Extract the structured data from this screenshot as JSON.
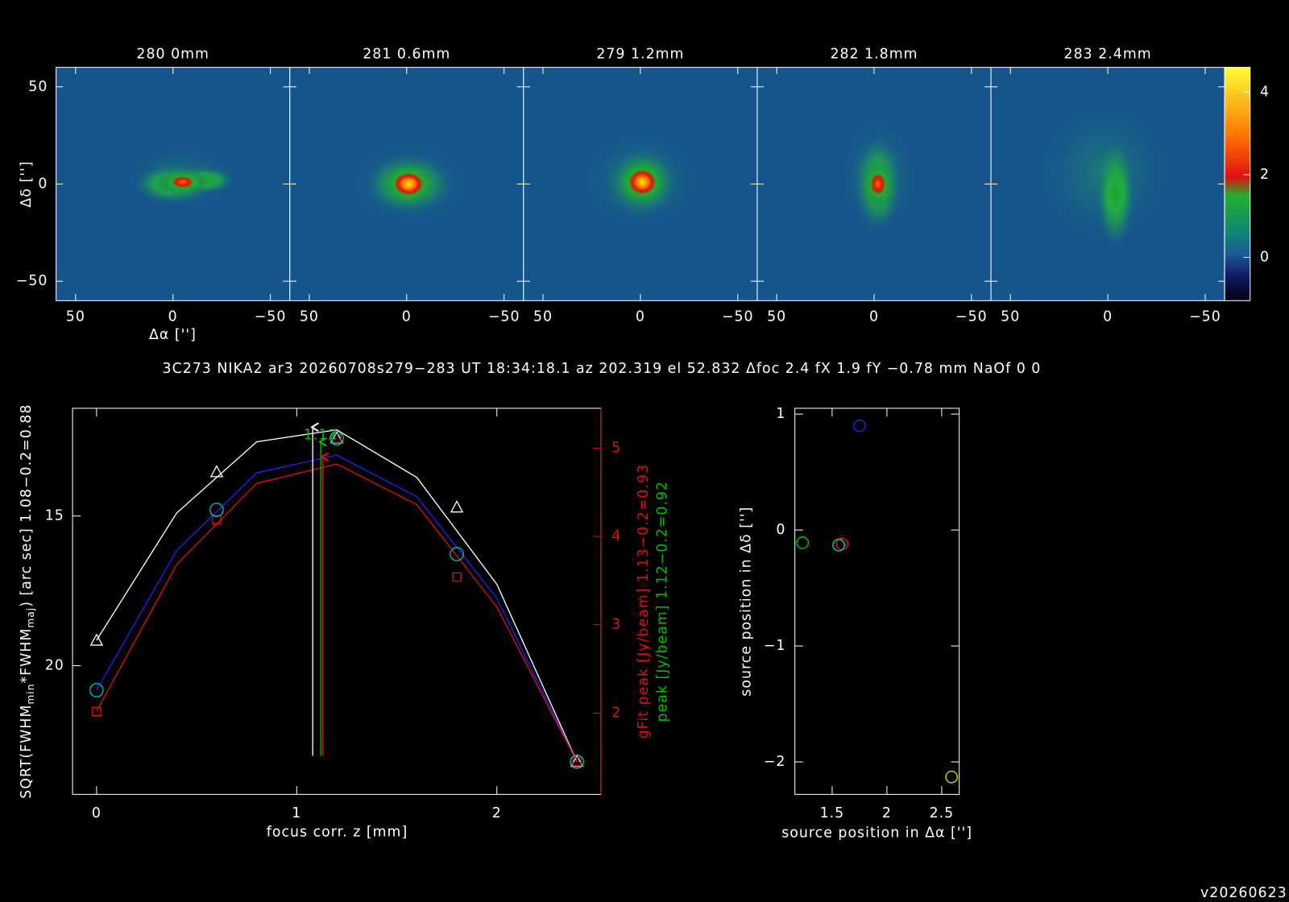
{
  "header": "3C273 NIKA2 ar3 20260708s279−283 UT 18:34:18.1 az 202.319 el 52.832 Δfoc 2.4 fX 1.9 fY −0.78 mm NaOf 0 0",
  "footer": "v20260623",
  "chart_data": [
    {
      "type": "image",
      "panels": [
        {
          "title": "280 0mm"
        },
        {
          "title": "281 0.6mm"
        },
        {
          "title": "279 1.2mm"
        },
        {
          "title": "282 1.8mm"
        },
        {
          "title": "283 2.4mm"
        }
      ],
      "xlabel": "Δα ['']",
      "ylabel": "Δδ ['']",
      "xlim": [
        60,
        -60
      ],
      "ylim": [
        -60,
        60
      ],
      "xticks": [
        50,
        0,
        {
          "value": -50,
          "label": "−50"
        }
      ],
      "yticks": [
        {
          "value": -50,
          "label": "−50"
        },
        0,
        50
      ],
      "colorbar": {
        "lim": [
          -1.05,
          4.6
        ],
        "ticks": [
          0,
          2,
          4
        ]
      }
    },
    {
      "type": "line",
      "xlabel": "focus corr. z [mm]",
      "ylabel": [
        "SQRT(FWHM",
        "min",
        "*FWHM",
        "maj",
        ") [arc sec] 1.08−0.2=0.88"
      ],
      "y2label": "gFit peak [Jy/beam] 1.13−0.2=0.93",
      "y2label_b": "peak [Jy/beam] 1.12−0.2=0.92",
      "xlim": [
        -0.12,
        2.52
      ],
      "ylim": [
        24.3,
        11.4
      ],
      "y2lim": [
        1.08,
        5.45
      ],
      "xticks": [
        0,
        1,
        2
      ],
      "yticks": [
        15,
        20
      ],
      "y2ticks": [
        2,
        3,
        4,
        5
      ],
      "x": [
        0,
        0.6,
        1.2,
        1.8,
        2.4
      ],
      "series": [
        {
          "marker": "triangle",
          "color": "#ffffff",
          "values": [
            19.15,
            13.52,
            12.39,
            14.7,
            23.2
          ]
        },
        {
          "marker": "square",
          "color": "#e01010",
          "axis": "y2",
          "values": [
            2.02,
            4.19,
            5.11,
            3.54,
            1.45
          ]
        },
        {
          "marker": "circle",
          "color": "#00c0c0",
          "axis": "y2",
          "values": [
            2.26,
            4.3,
            5.11,
            3.8,
            1.45
          ]
        }
      ],
      "fit_x": [
        0,
        0.4,
        0.8,
        1.2,
        1.6,
        2.0,
        2.4
      ],
      "fits": [
        {
          "color": "#ffffff",
          "values": [
            19.15,
            14.9,
            12.52,
            12.12,
            13.71,
            17.28,
            23.2
          ]
        },
        {
          "color": "#2020ff",
          "axis": "y2",
          "values": [
            2.26,
            3.84,
            4.72,
            4.92,
            4.45,
            3.3,
            1.45
          ]
        },
        {
          "color": "#e01010",
          "axis": "y2",
          "values": [
            2.02,
            3.68,
            4.6,
            4.82,
            4.36,
            3.2,
            1.45
          ]
        }
      ],
      "best_focus": [
        {
          "value": 1.08,
          "color": "#ffffff"
        },
        {
          "value": 1.12,
          "color": "#00c000"
        },
        {
          "value": 1.13,
          "color": "#e01010"
        }
      ],
      "annotation": {
        "text": "1.12",
        "x": 1.12,
        "color": "#00c000"
      }
    },
    {
      "type": "scatter",
      "xlabel": "source position in Δα ['']",
      "ylabel": "source position in Δδ ['']",
      "xlim": [
        1.16,
        2.66
      ],
      "ylim": [
        -2.28,
        1.05
      ],
      "xticks": [
        1.5,
        2,
        2.5
      ],
      "yticks": [
        {
          "value": -2,
          "label": "−2"
        },
        {
          "value": -1,
          "label": "−1"
        },
        0,
        1
      ],
      "points": [
        {
          "x": 1.23,
          "y": -0.11,
          "color": "#00c000"
        },
        {
          "x": 1.59,
          "y": -0.12,
          "color": "#e01010"
        },
        {
          "x": 1.56,
          "y": -0.13,
          "color": "#00c0c0"
        },
        {
          "x": 1.75,
          "y": 0.9,
          "color": "#2020e0"
        },
        {
          "x": 2.59,
          "y": -2.13,
          "color": "#c8c800"
        }
      ]
    }
  ]
}
